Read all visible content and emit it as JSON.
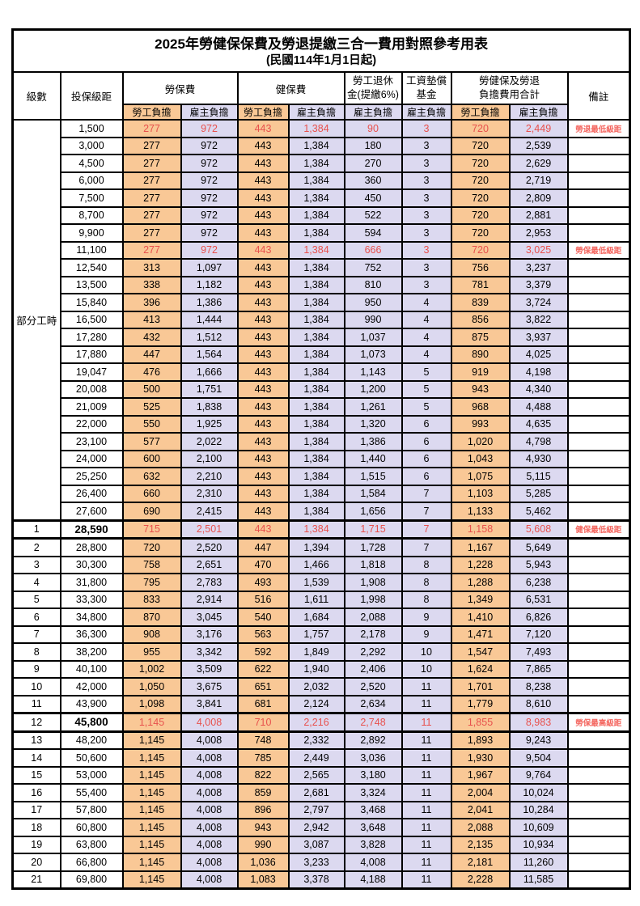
{
  "colors": {
    "employee_bg": "#F9C896",
    "employer_bg": "#DCD9F0",
    "value_red": "#E8514D",
    "note_red": "#F4665F",
    "border": "#000000"
  },
  "table": {
    "title": "2025年勞健保保費及勞退提繳三合一費用對照參考用表",
    "subtitle": "(民國114年1月1日起)",
    "headers": {
      "level": "級數",
      "bracket": "投保級距",
      "labor_ins": "勞保費",
      "health_ins": "健保費",
      "pension_line1": "勞工退休",
      "pension_line2": "金(提繳6%)",
      "wage_fund_line1": "工資墊償",
      "wage_fund_line2": "基金",
      "total_line1": "勞健保及勞退",
      "total_line2": "負擔費用合計",
      "remark": "備註",
      "employee": "勞工負擔",
      "employer": "雇主負擔"
    },
    "part_time_label": "部分工時",
    "rows": [
      {
        "level": "",
        "bracket": "1,500",
        "labor_emp": "277",
        "labor_er": "972",
        "health_emp": "443",
        "health_er": "1,384",
        "pension_er": "90",
        "wage_er": "3",
        "total_emp": "720",
        "total_er": "2,449",
        "note": "勞退最低級距",
        "red": true,
        "bold": false,
        "thick": false
      },
      {
        "level": "",
        "bracket": "3,000",
        "labor_emp": "277",
        "labor_er": "972",
        "health_emp": "443",
        "health_er": "1,384",
        "pension_er": "180",
        "wage_er": "3",
        "total_emp": "720",
        "total_er": "2,539",
        "note": "",
        "red": false,
        "bold": false,
        "thick": false
      },
      {
        "level": "",
        "bracket": "4,500",
        "labor_emp": "277",
        "labor_er": "972",
        "health_emp": "443",
        "health_er": "1,384",
        "pension_er": "270",
        "wage_er": "3",
        "total_emp": "720",
        "total_er": "2,629",
        "note": "",
        "red": false,
        "bold": false,
        "thick": false
      },
      {
        "level": "",
        "bracket": "6,000",
        "labor_emp": "277",
        "labor_er": "972",
        "health_emp": "443",
        "health_er": "1,384",
        "pension_er": "360",
        "wage_er": "3",
        "total_emp": "720",
        "total_er": "2,719",
        "note": "",
        "red": false,
        "bold": false,
        "thick": false
      },
      {
        "level": "",
        "bracket": "7,500",
        "labor_emp": "277",
        "labor_er": "972",
        "health_emp": "443",
        "health_er": "1,384",
        "pension_er": "450",
        "wage_er": "3",
        "total_emp": "720",
        "total_er": "2,809",
        "note": "",
        "red": false,
        "bold": false,
        "thick": false
      },
      {
        "level": "",
        "bracket": "8,700",
        "labor_emp": "277",
        "labor_er": "972",
        "health_emp": "443",
        "health_er": "1,384",
        "pension_er": "522",
        "wage_er": "3",
        "total_emp": "720",
        "total_er": "2,881",
        "note": "",
        "red": false,
        "bold": false,
        "thick": false
      },
      {
        "level": "",
        "bracket": "9,900",
        "labor_emp": "277",
        "labor_er": "972",
        "health_emp": "443",
        "health_er": "1,384",
        "pension_er": "594",
        "wage_er": "3",
        "total_emp": "720",
        "total_er": "2,953",
        "note": "",
        "red": false,
        "bold": false,
        "thick": false
      },
      {
        "level": "",
        "bracket": "11,100",
        "labor_emp": "277",
        "labor_er": "972",
        "health_emp": "443",
        "health_er": "1,384",
        "pension_er": "666",
        "wage_er": "3",
        "total_emp": "720",
        "total_er": "3,025",
        "note": "勞保最低級距",
        "red": true,
        "bold": false,
        "thick": false
      },
      {
        "level": "",
        "bracket": "12,540",
        "labor_emp": "313",
        "labor_er": "1,097",
        "health_emp": "443",
        "health_er": "1,384",
        "pension_er": "752",
        "wage_er": "3",
        "total_emp": "756",
        "total_er": "3,237",
        "note": "",
        "red": false,
        "bold": false,
        "thick": false
      },
      {
        "level": "",
        "bracket": "13,500",
        "labor_emp": "338",
        "labor_er": "1,182",
        "health_emp": "443",
        "health_er": "1,384",
        "pension_er": "810",
        "wage_er": "3",
        "total_emp": "781",
        "total_er": "3,379",
        "note": "",
        "red": false,
        "bold": false,
        "thick": false
      },
      {
        "level": "",
        "bracket": "15,840",
        "labor_emp": "396",
        "labor_er": "1,386",
        "health_emp": "443",
        "health_er": "1,384",
        "pension_er": "950",
        "wage_er": "4",
        "total_emp": "839",
        "total_er": "3,724",
        "note": "",
        "red": false,
        "bold": false,
        "thick": false
      },
      {
        "level": "",
        "bracket": "16,500",
        "labor_emp": "413",
        "labor_er": "1,444",
        "health_emp": "443",
        "health_er": "1,384",
        "pension_er": "990",
        "wage_er": "4",
        "total_emp": "856",
        "total_er": "3,822",
        "note": "",
        "red": false,
        "bold": false,
        "thick": false
      },
      {
        "level": "",
        "bracket": "17,280",
        "labor_emp": "432",
        "labor_er": "1,512",
        "health_emp": "443",
        "health_er": "1,384",
        "pension_er": "1,037",
        "wage_er": "4",
        "total_emp": "875",
        "total_er": "3,937",
        "note": "",
        "red": false,
        "bold": false,
        "thick": false
      },
      {
        "level": "",
        "bracket": "17,880",
        "labor_emp": "447",
        "labor_er": "1,564",
        "health_emp": "443",
        "health_er": "1,384",
        "pension_er": "1,073",
        "wage_er": "4",
        "total_emp": "890",
        "total_er": "4,025",
        "note": "",
        "red": false,
        "bold": false,
        "thick": false
      },
      {
        "level": "",
        "bracket": "19,047",
        "labor_emp": "476",
        "labor_er": "1,666",
        "health_emp": "443",
        "health_er": "1,384",
        "pension_er": "1,143",
        "wage_er": "5",
        "total_emp": "919",
        "total_er": "4,198",
        "note": "",
        "red": false,
        "bold": false,
        "thick": false
      },
      {
        "level": "",
        "bracket": "20,008",
        "labor_emp": "500",
        "labor_er": "1,751",
        "health_emp": "443",
        "health_er": "1,384",
        "pension_er": "1,200",
        "wage_er": "5",
        "total_emp": "943",
        "total_er": "4,340",
        "note": "",
        "red": false,
        "bold": false,
        "thick": false
      },
      {
        "level": "",
        "bracket": "21,009",
        "labor_emp": "525",
        "labor_er": "1,838",
        "health_emp": "443",
        "health_er": "1,384",
        "pension_er": "1,261",
        "wage_er": "5",
        "total_emp": "968",
        "total_er": "4,488",
        "note": "",
        "red": false,
        "bold": false,
        "thick": false
      },
      {
        "level": "",
        "bracket": "22,000",
        "labor_emp": "550",
        "labor_er": "1,925",
        "health_emp": "443",
        "health_er": "1,384",
        "pension_er": "1,320",
        "wage_er": "6",
        "total_emp": "993",
        "total_er": "4,635",
        "note": "",
        "red": false,
        "bold": false,
        "thick": false
      },
      {
        "level": "",
        "bracket": "23,100",
        "labor_emp": "577",
        "labor_er": "2,022",
        "health_emp": "443",
        "health_er": "1,384",
        "pension_er": "1,386",
        "wage_er": "6",
        "total_emp": "1,020",
        "total_er": "4,798",
        "note": "",
        "red": false,
        "bold": false,
        "thick": false
      },
      {
        "level": "",
        "bracket": "24,000",
        "labor_emp": "600",
        "labor_er": "2,100",
        "health_emp": "443",
        "health_er": "1,384",
        "pension_er": "1,440",
        "wage_er": "6",
        "total_emp": "1,043",
        "total_er": "4,930",
        "note": "",
        "red": false,
        "bold": false,
        "thick": false
      },
      {
        "level": "",
        "bracket": "25,250",
        "labor_emp": "632",
        "labor_er": "2,210",
        "health_emp": "443",
        "health_er": "1,384",
        "pension_er": "1,515",
        "wage_er": "6",
        "total_emp": "1,075",
        "total_er": "5,115",
        "note": "",
        "red": false,
        "bold": false,
        "thick": false
      },
      {
        "level": "",
        "bracket": "26,400",
        "labor_emp": "660",
        "labor_er": "2,310",
        "health_emp": "443",
        "health_er": "1,384",
        "pension_er": "1,584",
        "wage_er": "7",
        "total_emp": "1,103",
        "total_er": "5,285",
        "note": "",
        "red": false,
        "bold": false,
        "thick": false
      },
      {
        "level": "",
        "bracket": "27,600",
        "labor_emp": "690",
        "labor_er": "2,415",
        "health_emp": "443",
        "health_er": "1,384",
        "pension_er": "1,656",
        "wage_er": "7",
        "total_emp": "1,133",
        "total_er": "5,462",
        "note": "",
        "red": false,
        "bold": false,
        "thick": false
      },
      {
        "level": "1",
        "bracket": "28,590",
        "labor_emp": "715",
        "labor_er": "2,501",
        "health_emp": "443",
        "health_er": "1,384",
        "pension_er": "1,715",
        "wage_er": "7",
        "total_emp": "1,158",
        "total_er": "5,608",
        "note": "健保最低級距",
        "red": true,
        "bold": true,
        "thick": true
      },
      {
        "level": "2",
        "bracket": "28,800",
        "labor_emp": "720",
        "labor_er": "2,520",
        "health_emp": "447",
        "health_er": "1,394",
        "pension_er": "1,728",
        "wage_er": "7",
        "total_emp": "1,167",
        "total_er": "5,649",
        "note": "",
        "red": false,
        "bold": false,
        "thick": false
      },
      {
        "level": "3",
        "bracket": "30,300",
        "labor_emp": "758",
        "labor_er": "2,651",
        "health_emp": "470",
        "health_er": "1,466",
        "pension_er": "1,818",
        "wage_er": "8",
        "total_emp": "1,228",
        "total_er": "5,943",
        "note": "",
        "red": false,
        "bold": false,
        "thick": false
      },
      {
        "level": "4",
        "bracket": "31,800",
        "labor_emp": "795",
        "labor_er": "2,783",
        "health_emp": "493",
        "health_er": "1,539",
        "pension_er": "1,908",
        "wage_er": "8",
        "total_emp": "1,288",
        "total_er": "6,238",
        "note": "",
        "red": false,
        "bold": false,
        "thick": false
      },
      {
        "level": "5",
        "bracket": "33,300",
        "labor_emp": "833",
        "labor_er": "2,914",
        "health_emp": "516",
        "health_er": "1,611",
        "pension_er": "1,998",
        "wage_er": "8",
        "total_emp": "1,349",
        "total_er": "6,531",
        "note": "",
        "red": false,
        "bold": false,
        "thick": false
      },
      {
        "level": "6",
        "bracket": "34,800",
        "labor_emp": "870",
        "labor_er": "3,045",
        "health_emp": "540",
        "health_er": "1,684",
        "pension_er": "2,088",
        "wage_er": "9",
        "total_emp": "1,410",
        "total_er": "6,826",
        "note": "",
        "red": false,
        "bold": false,
        "thick": false
      },
      {
        "level": "7",
        "bracket": "36,300",
        "labor_emp": "908",
        "labor_er": "3,176",
        "health_emp": "563",
        "health_er": "1,757",
        "pension_er": "2,178",
        "wage_er": "9",
        "total_emp": "1,471",
        "total_er": "7,120",
        "note": "",
        "red": false,
        "bold": false,
        "thick": false
      },
      {
        "level": "8",
        "bracket": "38,200",
        "labor_emp": "955",
        "labor_er": "3,342",
        "health_emp": "592",
        "health_er": "1,849",
        "pension_er": "2,292",
        "wage_er": "10",
        "total_emp": "1,547",
        "total_er": "7,493",
        "note": "",
        "red": false,
        "bold": false,
        "thick": false
      },
      {
        "level": "9",
        "bracket": "40,100",
        "labor_emp": "1,002",
        "labor_er": "3,509",
        "health_emp": "622",
        "health_er": "1,940",
        "pension_er": "2,406",
        "wage_er": "10",
        "total_emp": "1,624",
        "total_er": "7,865",
        "note": "",
        "red": false,
        "bold": false,
        "thick": false
      },
      {
        "level": "10",
        "bracket": "42,000",
        "labor_emp": "1,050",
        "labor_er": "3,675",
        "health_emp": "651",
        "health_er": "2,032",
        "pension_er": "2,520",
        "wage_er": "11",
        "total_emp": "1,701",
        "total_er": "8,238",
        "note": "",
        "red": false,
        "bold": false,
        "thick": false
      },
      {
        "level": "11",
        "bracket": "43,900",
        "labor_emp": "1,098",
        "labor_er": "3,841",
        "health_emp": "681",
        "health_er": "2,124",
        "pension_er": "2,634",
        "wage_er": "11",
        "total_emp": "1,779",
        "total_er": "8,610",
        "note": "",
        "red": false,
        "bold": false,
        "thick": false
      },
      {
        "level": "12",
        "bracket": "45,800",
        "labor_emp": "1,145",
        "labor_er": "4,008",
        "health_emp": "710",
        "health_er": "2,216",
        "pension_er": "2,748",
        "wage_er": "11",
        "total_emp": "1,855",
        "total_er": "8,983",
        "note": "勞保最高級距",
        "red": true,
        "bold": true,
        "thick": true
      },
      {
        "level": "13",
        "bracket": "48,200",
        "labor_emp": "1,145",
        "labor_er": "4,008",
        "health_emp": "748",
        "health_er": "2,332",
        "pension_er": "2,892",
        "wage_er": "11",
        "total_emp": "1,893",
        "total_er": "9,243",
        "note": "",
        "red": false,
        "bold": false,
        "thick": false
      },
      {
        "level": "14",
        "bracket": "50,600",
        "labor_emp": "1,145",
        "labor_er": "4,008",
        "health_emp": "785",
        "health_er": "2,449",
        "pension_er": "3,036",
        "wage_er": "11",
        "total_emp": "1,930",
        "total_er": "9,504",
        "note": "",
        "red": false,
        "bold": false,
        "thick": false
      },
      {
        "level": "15",
        "bracket": "53,000",
        "labor_emp": "1,145",
        "labor_er": "4,008",
        "health_emp": "822",
        "health_er": "2,565",
        "pension_er": "3,180",
        "wage_er": "11",
        "total_emp": "1,967",
        "total_er": "9,764",
        "note": "",
        "red": false,
        "bold": false,
        "thick": false
      },
      {
        "level": "16",
        "bracket": "55,400",
        "labor_emp": "1,145",
        "labor_er": "4,008",
        "health_emp": "859",
        "health_er": "2,681",
        "pension_er": "3,324",
        "wage_er": "11",
        "total_emp": "2,004",
        "total_er": "10,024",
        "note": "",
        "red": false,
        "bold": false,
        "thick": false
      },
      {
        "level": "17",
        "bracket": "57,800",
        "labor_emp": "1,145",
        "labor_er": "4,008",
        "health_emp": "896",
        "health_er": "2,797",
        "pension_er": "3,468",
        "wage_er": "11",
        "total_emp": "2,041",
        "total_er": "10,284",
        "note": "",
        "red": false,
        "bold": false,
        "thick": false
      },
      {
        "level": "18",
        "bracket": "60,800",
        "labor_emp": "1,145",
        "labor_er": "4,008",
        "health_emp": "943",
        "health_er": "2,942",
        "pension_er": "3,648",
        "wage_er": "11",
        "total_emp": "2,088",
        "total_er": "10,609",
        "note": "",
        "red": false,
        "bold": false,
        "thick": false
      },
      {
        "level": "19",
        "bracket": "63,800",
        "labor_emp": "1,145",
        "labor_er": "4,008",
        "health_emp": "990",
        "health_er": "3,087",
        "pension_er": "3,828",
        "wage_er": "11",
        "total_emp": "2,135",
        "total_er": "10,934",
        "note": "",
        "red": false,
        "bold": false,
        "thick": false
      },
      {
        "level": "20",
        "bracket": "66,800",
        "labor_emp": "1,145",
        "labor_er": "4,008",
        "health_emp": "1,036",
        "health_er": "3,233",
        "pension_er": "4,008",
        "wage_er": "11",
        "total_emp": "2,181",
        "total_er": "11,260",
        "note": "",
        "red": false,
        "bold": false,
        "thick": false
      },
      {
        "level": "21",
        "bracket": "69,800",
        "labor_emp": "1,145",
        "labor_er": "4,008",
        "health_emp": "1,083",
        "health_er": "3,378",
        "pension_er": "4,188",
        "wage_er": "11",
        "total_emp": "2,228",
        "total_er": "11,585",
        "note": "",
        "red": false,
        "bold": false,
        "thick": false
      }
    ]
  }
}
